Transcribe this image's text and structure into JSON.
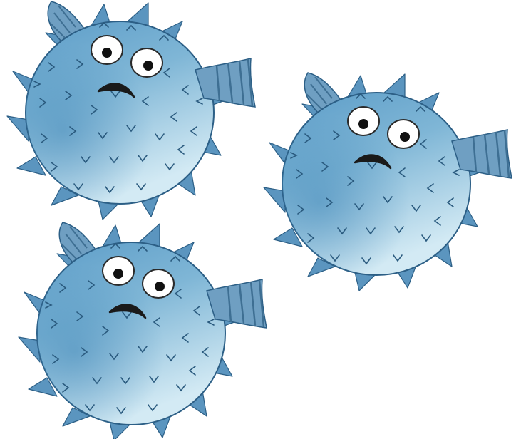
{
  "scene": {
    "background": "#ffffff",
    "fish_count": 3,
    "fish": [
      {
        "name": "top-left",
        "mood": "worried"
      },
      {
        "name": "right",
        "mood": "worried"
      },
      {
        "name": "bottom-left",
        "mood": "worried"
      }
    ],
    "colors": {
      "body_light": "#cfe8f3",
      "body_mid": "#7fb6d6",
      "body_dark": "#3f86b7",
      "outline": "#2c5f86",
      "spike": "#5b95bf",
      "fin": "#6f9fc2",
      "fin_stripe": "#3e6f93",
      "marking": "#2a5a7e",
      "eye_white": "#ffffff",
      "pupil": "#111111",
      "mouth": "#1a1a1a"
    }
  }
}
